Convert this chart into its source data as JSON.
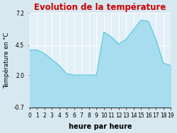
{
  "title": "Evolution de la température",
  "xlabel": "heure par heure",
  "ylabel": "Température en °C",
  "ylim": [
    -0.7,
    7.2
  ],
  "yticks": [
    -0.7,
    2.0,
    4.5,
    7.2
  ],
  "ytick_labels": [
    "-0.7",
    "2.0",
    "4.5",
    "7.2"
  ],
  "hours": [
    0,
    1,
    2,
    3,
    4,
    5,
    6,
    7,
    8,
    9,
    10,
    11,
    12,
    13,
    14,
    15,
    16,
    17,
    18,
    19
  ],
  "temperatures": [
    4.1,
    4.1,
    3.8,
    3.3,
    2.8,
    2.1,
    2.0,
    2.0,
    2.0,
    2.0,
    5.6,
    5.2,
    4.6,
    5.0,
    5.8,
    6.6,
    6.5,
    5.0,
    3.0,
    2.8
  ],
  "xtick_labels": [
    "0",
    "1",
    "2",
    "3",
    "4",
    "5",
    "6",
    "7",
    "8",
    "9",
    "10",
    "11",
    "12",
    "13",
    "14",
    "15",
    "16",
    "17",
    "18",
    "19"
  ],
  "line_color": "#55c8dc",
  "fill_color": "#a8ddf0",
  "title_color": "#cc0000",
  "background_color": "#d8e8f0",
  "plot_bg_color": "#e4f0f8",
  "grid_color": "#ffffff",
  "title_fontsize": 8.5,
  "label_fontsize": 6.0,
  "tick_fontsize": 5.5,
  "xlabel_fontsize": 7.0
}
